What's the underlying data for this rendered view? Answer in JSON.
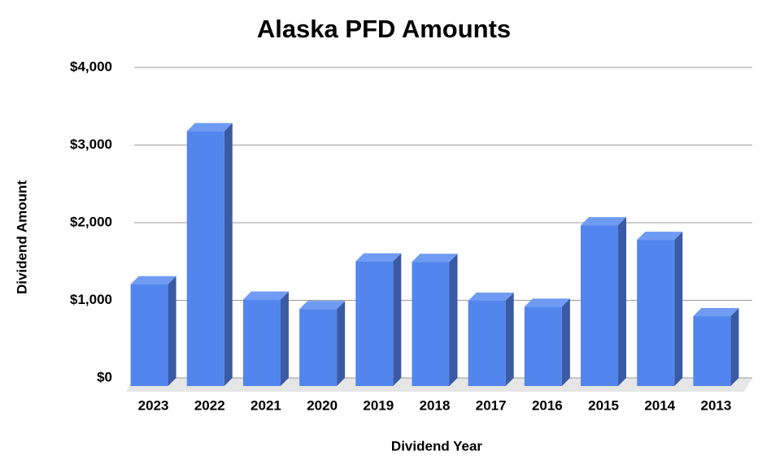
{
  "chart_data": {
    "type": "bar3d",
    "title": "Alaska PFD Amounts",
    "x_label": "Dividend Year",
    "y_label": "Dividend Amount",
    "categories": [
      "2023",
      "2022",
      "2021",
      "2020",
      "2019",
      "2018",
      "2017",
      "2016",
      "2015",
      "2014",
      "2013"
    ],
    "values": [
      1312,
      3284,
      1114,
      992,
      1606,
      1600,
      1100,
      1022,
      2072,
      1884,
      900
    ],
    "color": "#5285ee",
    "ylim": [
      0,
      4000
    ],
    "yticks": [
      {
        "value": 0,
        "label": "$0"
      },
      {
        "value": 1000,
        "label": "$1,000"
      },
      {
        "value": 2000,
        "label": "$2,000"
      },
      {
        "value": 3000,
        "label": "$3,000"
      },
      {
        "value": 4000,
        "label": "$4,000"
      }
    ],
    "grid": true
  }
}
